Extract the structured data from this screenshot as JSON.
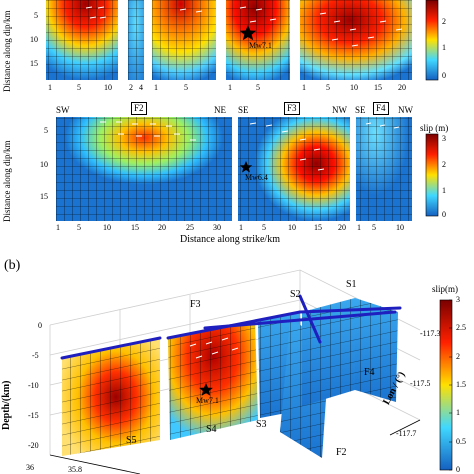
{
  "top_panel": {
    "y_axis_label": "Distance along dip/km",
    "y_ticks": [
      "5",
      "10",
      "15"
    ],
    "colorbar_ticks": [
      "2",
      "1",
      "0"
    ],
    "segment_x_ticks": [
      [
        "1",
        "5",
        "10"
      ],
      [
        "2",
        "4"
      ],
      [
        "1",
        "5"
      ],
      [
        "1",
        "5"
      ],
      [
        "1",
        "5",
        "10",
        "15",
        "20"
      ]
    ],
    "epicenter_label": "Mw7.1"
  },
  "middle_panel": {
    "y_axis_label": "Distance along dip/km",
    "x_axis_label": "Distance along strike/km",
    "y_ticks": [
      "5",
      "10",
      "15"
    ],
    "colorbar_title": "slip (m)",
    "colorbar_ticks": [
      "3",
      "2",
      "1",
      "0"
    ],
    "direction_labels": [
      "SW",
      "NE",
      "SE",
      "NW",
      "SE",
      "NW"
    ],
    "fault_tags": [
      "F2",
      "F3",
      "F4"
    ],
    "epicenter_label": "Mw6.4",
    "segment_x_ticks": [
      [
        "1",
        "5",
        "10",
        "15",
        "20",
        "25",
        "30"
      ],
      [
        "1",
        "5",
        "10",
        "15",
        "20"
      ],
      [
        "1",
        "5",
        "10"
      ]
    ]
  },
  "bottom_panel": {
    "panel_label": "(b)",
    "colorbar_title": "slip(m)",
    "colorbar_ticks": [
      "3",
      "2.5",
      "2",
      "1.5",
      "1",
      "0.5",
      "0"
    ],
    "z_axis_label": "Depth/(km)",
    "z_ticks": [
      "0",
      "-5",
      "-10",
      "-15",
      "-20"
    ],
    "lon_axis_label": "Lon / (°)",
    "lon_ticks": [
      "-117.3",
      "-117.5",
      "-117.7"
    ],
    "lat_ticks": [
      "36",
      "35.8"
    ],
    "fault_labels": [
      "F3",
      "S2",
      "S1",
      "F4",
      "F2",
      "S3",
      "S4",
      "S5"
    ],
    "epicenter_label": "Mw7.1"
  },
  "colors": {
    "high": "#8b0000",
    "mid": "#ffff00",
    "low": "#0c5fb3",
    "grid": "#000000",
    "fault_trace": "#1f1fbf"
  }
}
